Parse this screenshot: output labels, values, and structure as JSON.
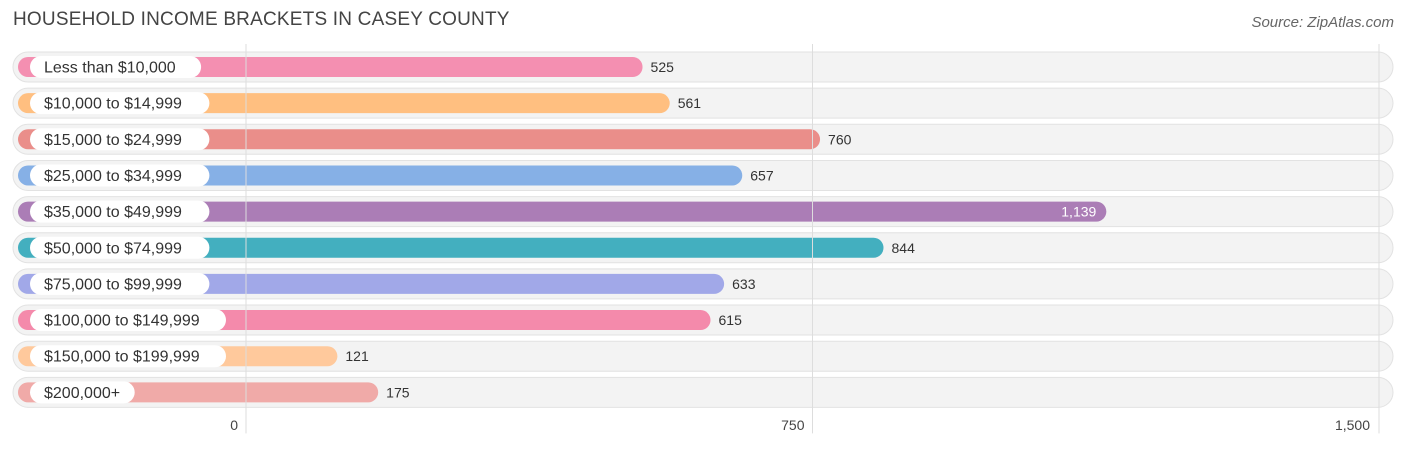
{
  "header": {
    "title": "HOUSEHOLD INCOME BRACKETS IN CASEY COUNTY",
    "source": "Source: ZipAtlas.com"
  },
  "chart_data": {
    "type": "bar",
    "orientation": "horizontal",
    "title": "HOUSEHOLD INCOME BRACKETS IN CASEY COUNTY",
    "categories": [
      "Less than $10,000",
      "$10,000 to $14,999",
      "$15,000 to $24,999",
      "$25,000 to $34,999",
      "$35,000 to $49,999",
      "$50,000 to $74,999",
      "$75,000 to $99,999",
      "$100,000 to $149,999",
      "$150,000 to $199,999",
      "$200,000+"
    ],
    "values": [
      525,
      561,
      760,
      657,
      1139,
      844,
      633,
      615,
      121,
      175
    ],
    "value_labels": [
      "525",
      "561",
      "760",
      "657",
      "1,139",
      "844",
      "633",
      "615",
      "121",
      "175"
    ],
    "colors": [
      "#f48fb1",
      "#ffbf80",
      "#ea8e8a",
      "#86b0e6",
      "#ab7db6",
      "#43afbf",
      "#a1a8e8",
      "#f48aab",
      "#ffc99c",
      "#f0aaa8"
    ],
    "xlim": [
      0,
      1500
    ],
    "ticks": [
      0,
      750,
      1500
    ],
    "tick_labels": [
      "0",
      "750",
      "1,500"
    ],
    "grid": true
  }
}
